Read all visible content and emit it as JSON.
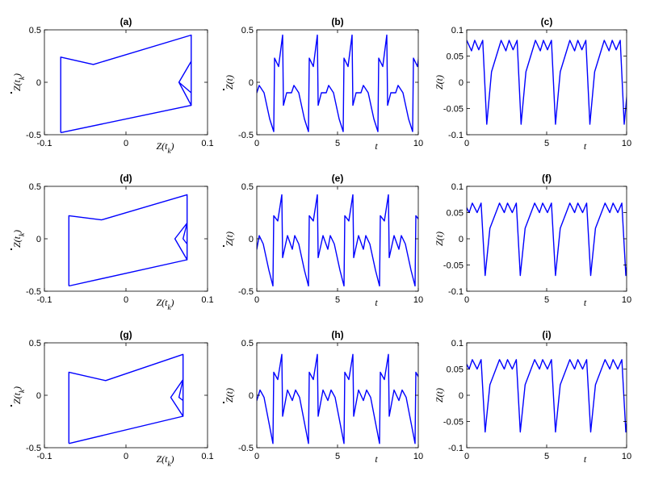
{
  "line_color": "#0000ff",
  "chart_data": [
    {
      "panel": "a",
      "title": "(a)",
      "type": "line",
      "xlabel": "Z(t_k)",
      "ylabel": "Ż(t_k)",
      "xlim": [
        -0.1,
        0.1
      ],
      "ylim": [
        -0.5,
        0.5
      ],
      "xticks": [
        -0.1,
        0,
        0.1
      ],
      "yticks": [
        -0.5,
        0,
        0.5
      ],
      "xtick_labels": [
        "-0.1",
        "0",
        "0.1"
      ],
      "ytick_labels": [
        "-0.5",
        "0",
        "0.5"
      ],
      "series": [
        {
          "x": [
            -0.08,
            -0.08,
            -0.04,
            0.08,
            0.08,
            0.065,
            0.08,
            0.08,
            0.065,
            0.08,
            0.08,
            -0.08
          ],
          "y": [
            -0.48,
            0.24,
            0.17,
            0.45,
            0.2,
            0.0,
            -0.22,
            0.2,
            0.0,
            -0.1,
            -0.22,
            -0.48
          ]
        }
      ]
    },
    {
      "panel": "b",
      "title": "(b)",
      "type": "line",
      "xlabel": "t",
      "ylabel": "Ż(t)",
      "xlim": [
        0,
        10
      ],
      "ylim": [
        -0.5,
        0.5
      ],
      "xticks": [
        0,
        5,
        10
      ],
      "yticks": [
        -0.5,
        0,
        0.5
      ],
      "xtick_labels": [
        "0",
        "5",
        "10"
      ],
      "ytick_labels": [
        "-0.5",
        "0",
        "0.5"
      ],
      "series": [
        {
          "period": 2.15,
          "offset": 0.0,
          "x": [
            0,
            0.15,
            0.45,
            0.8,
            1.05,
            1.1,
            1.35,
            1.6,
            1.65,
            1.85,
            2.15
          ],
          "y": [
            -0.1,
            -0.03,
            -0.1,
            -0.35,
            -0.47,
            0.23,
            0.15,
            0.45,
            -0.22,
            -0.1,
            -0.1
          ]
        }
      ]
    },
    {
      "panel": "c",
      "title": "(c)",
      "type": "line",
      "xlabel": "t",
      "ylabel": "Z(t)",
      "xlim": [
        0,
        10
      ],
      "ylim": [
        -0.1,
        0.1
      ],
      "xticks": [
        0,
        5,
        10
      ],
      "yticks": [
        -0.1,
        -0.05,
        0,
        0.05,
        0.1
      ],
      "xtick_labels": [
        "0",
        "5",
        "10"
      ],
      "ytick_labels": [
        "-0.1",
        "-0.05",
        "0",
        "0.05",
        "0.1"
      ],
      "series": [
        {
          "period": 2.15,
          "offset": 0.9,
          "x": [
            0,
            0.3,
            0.9,
            1.2,
            1.4,
            1.65,
            1.9,
            2.15
          ],
          "y": [
            -0.08,
            0.02,
            0.08,
            0.06,
            0.08,
            0.062,
            0.08,
            -0.08
          ]
        }
      ]
    },
    {
      "panel": "d",
      "title": "(d)",
      "type": "line",
      "xlabel": "Z(t_k)",
      "ylabel": "Ż(t_k)",
      "xlim": [
        -0.1,
        0.1
      ],
      "ylim": [
        -0.5,
        0.5
      ],
      "xticks": [
        -0.1,
        0,
        0.1
      ],
      "yticks": [
        -0.5,
        0,
        0.5
      ],
      "xtick_labels": [
        "-0.1",
        "0",
        "0.1"
      ],
      "ytick_labels": [
        "-0.5",
        "0",
        "0.5"
      ],
      "series": [
        {
          "x": [
            -0.07,
            -0.07,
            -0.03,
            0.075,
            0.075,
            0.06,
            0.075,
            0.075,
            0.07,
            0.075,
            0.075,
            -0.07
          ],
          "y": [
            -0.45,
            0.22,
            0.18,
            0.42,
            0.15,
            0.0,
            -0.2,
            0.15,
            0.0,
            -0.05,
            -0.2,
            -0.45
          ]
        }
      ]
    },
    {
      "panel": "e",
      "title": "(e)",
      "type": "line",
      "xlabel": "t",
      "ylabel": "Ż(t)",
      "xlim": [
        0,
        10
      ],
      "ylim": [
        -0.5,
        0.5
      ],
      "xticks": [
        0,
        5,
        10
      ],
      "yticks": [
        -0.5,
        0,
        0.5
      ],
      "xtick_labels": [
        "0",
        "5",
        "10"
      ],
      "ytick_labels": [
        "-0.5",
        "0",
        "0.5"
      ],
      "series": [
        {
          "period": 2.2,
          "offset": 0.0,
          "x": [
            0,
            0.15,
            0.4,
            0.75,
            1.0,
            1.05,
            1.3,
            1.55,
            1.6,
            1.9,
            2.2
          ],
          "y": [
            -0.1,
            0.03,
            -0.05,
            -0.3,
            -0.45,
            0.22,
            0.17,
            0.42,
            -0.18,
            0.03,
            -0.1
          ]
        }
      ]
    },
    {
      "panel": "f",
      "title": "(f)",
      "type": "line",
      "xlabel": "t",
      "ylabel": "Z(t)",
      "xlim": [
        0,
        10
      ],
      "ylim": [
        -0.1,
        0.1
      ],
      "xticks": [
        0,
        5,
        10
      ],
      "yticks": [
        -0.1,
        -0.05,
        0,
        0.05,
        0.1
      ],
      "xtick_labels": [
        "0",
        "5",
        "10"
      ],
      "ytick_labels": [
        "-0.1",
        "-0.05",
        "0",
        "0.05",
        "0.1"
      ],
      "series": [
        {
          "period": 2.2,
          "offset": 1.05,
          "x": [
            0,
            0.3,
            0.9,
            1.2,
            1.4,
            1.7,
            1.95,
            2.2
          ],
          "y": [
            -0.07,
            0.02,
            0.068,
            0.05,
            0.068,
            0.05,
            0.068,
            -0.07
          ]
        }
      ]
    },
    {
      "panel": "g",
      "title": "(g)",
      "type": "line",
      "xlabel": "Z(t_k)",
      "ylabel": "Ż(t_k)",
      "xlim": [
        -0.1,
        0.1
      ],
      "ylim": [
        -0.5,
        0.5
      ],
      "xticks": [
        -0.1,
        0,
        0.1
      ],
      "yticks": [
        -0.5,
        0,
        0.5
      ],
      "xtick_labels": [
        "-0.1",
        "0",
        "0.1"
      ],
      "ytick_labels": [
        "-0.5",
        "0",
        "0.5"
      ],
      "series": [
        {
          "x": [
            -0.07,
            -0.07,
            -0.025,
            0.07,
            0.07,
            0.055,
            0.07,
            0.07,
            0.065,
            0.07,
            0.07,
            -0.07
          ],
          "y": [
            -0.46,
            0.22,
            0.14,
            0.39,
            0.15,
            -0.02,
            -0.2,
            0.15,
            -0.02,
            -0.05,
            -0.2,
            -0.46
          ]
        }
      ]
    },
    {
      "panel": "h",
      "title": "(h)",
      "type": "line",
      "xlabel": "t",
      "ylabel": "Ż(t)",
      "xlim": [
        0,
        10
      ],
      "ylim": [
        -0.5,
        0.5
      ],
      "xticks": [
        0,
        5,
        10
      ],
      "yticks": [
        -0.5,
        0,
        0.5
      ],
      "xtick_labels": [
        "0",
        "5",
        "10"
      ],
      "ytick_labels": [
        "-0.5",
        "0",
        "0.5"
      ],
      "series": [
        {
          "period": 2.2,
          "offset": 0.0,
          "x": [
            0,
            0.2,
            0.45,
            0.8,
            1.0,
            1.05,
            1.3,
            1.55,
            1.6,
            1.9,
            2.2
          ],
          "y": [
            -0.05,
            0.05,
            -0.02,
            -0.3,
            -0.46,
            0.22,
            0.15,
            0.39,
            -0.2,
            0.05,
            -0.05
          ]
        }
      ]
    },
    {
      "panel": "i",
      "title": "(i)",
      "type": "line",
      "xlabel": "t",
      "ylabel": "Z(t)",
      "xlim": [
        0,
        10
      ],
      "ylim": [
        -0.1,
        0.1
      ],
      "xticks": [
        0,
        5,
        10
      ],
      "yticks": [
        -0.1,
        -0.05,
        0,
        0.05,
        0.1
      ],
      "xtick_labels": [
        "0",
        "5",
        "10"
      ],
      "ytick_labels": [
        "-0.1",
        "-0.05",
        "0",
        "0.05",
        "0.1"
      ],
      "series": [
        {
          "period": 2.2,
          "offset": 1.05,
          "x": [
            0,
            0.3,
            0.9,
            1.2,
            1.4,
            1.7,
            1.95,
            2.2
          ],
          "y": [
            -0.07,
            0.02,
            0.068,
            0.05,
            0.068,
            0.05,
            0.068,
            -0.07
          ]
        }
      ]
    }
  ]
}
